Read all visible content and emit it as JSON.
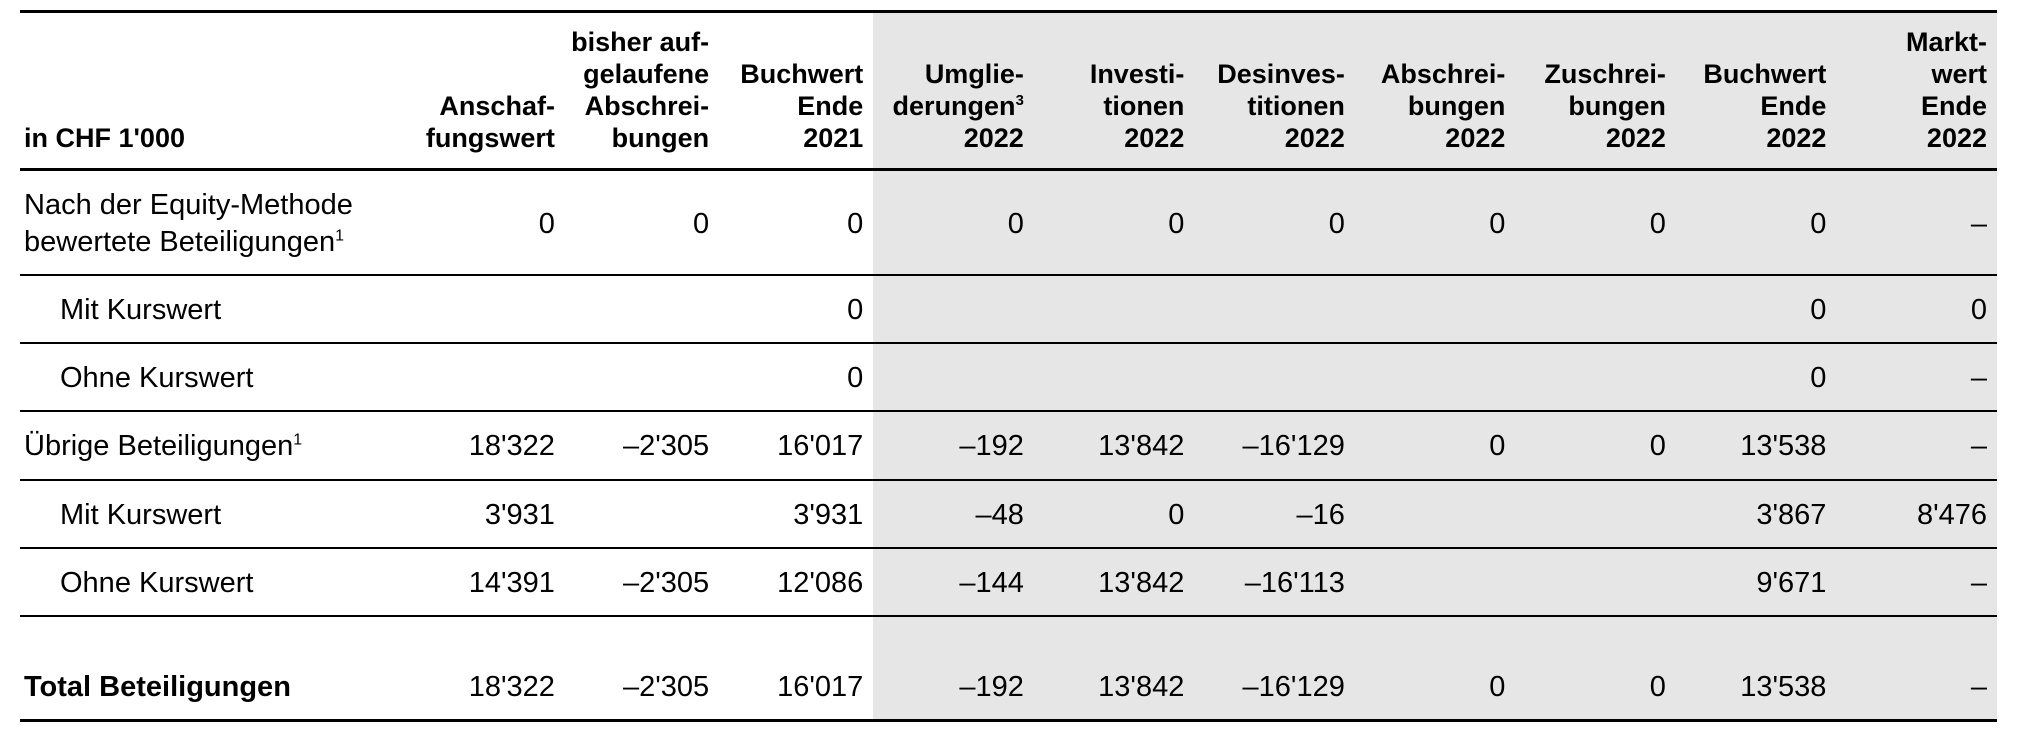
{
  "header": {
    "rowLabel": "in CHF 1'000",
    "cols": [
      "Anschaf-\nfungswert",
      "bisher auf-\ngelaufene\nAbschrei-\nbungen",
      "Buchwert\nEnde\n2021",
      "Umglie-\nderungen³\n2022",
      "Investi-\ntionen\n2022",
      "Desinves-\ntitionen\n2022",
      "Abschrei-\nbungen\n2022",
      "Zuschrei-\nbungen\n2022",
      "Buchwert\nEnde\n2022",
      "Markt-\nwert\nEnde\n2022"
    ]
  },
  "rows": [
    {
      "label": "Nach der Equity-Methode\nbewertete Beteiligungen¹",
      "cells": [
        "0",
        "0",
        "0",
        "0",
        "0",
        "0",
        "0",
        "0",
        "0",
        "–"
      ],
      "indent": false
    },
    {
      "label": "Mit Kurswert",
      "cells": [
        "",
        "",
        "0",
        "",
        "",
        "",
        "",
        "",
        "0",
        "0"
      ],
      "indent": true
    },
    {
      "label": "Ohne Kurswert",
      "cells": [
        "",
        "",
        "0",
        "",
        "",
        "",
        "",
        "",
        "0",
        "–"
      ],
      "indent": true
    },
    {
      "label": "Übrige Beteiligungen¹",
      "cells": [
        "18'322",
        "–2'305",
        "16'017",
        "–192",
        "13'842",
        "–16'129",
        "0",
        "0",
        "13'538",
        "–"
      ],
      "indent": false
    },
    {
      "label": "Mit Kurswert",
      "cells": [
        "3'931",
        "",
        "3'931",
        "–48",
        "0",
        "–16",
        "",
        "",
        "3'867",
        "8'476"
      ],
      "indent": true
    },
    {
      "label": "Ohne Kurswert",
      "cells": [
        "14'391",
        "–2'305",
        "12'086",
        "–144",
        "13'842",
        "–16'113",
        "",
        "",
        "9'671",
        "–"
      ],
      "indent": true
    }
  ],
  "total": {
    "label": "Total Beteiligungen",
    "cells": [
      "18'322",
      "–2'305",
      "16'017",
      "–192",
      "13'842",
      "–16'129",
      "0",
      "0",
      "13'538",
      "–"
    ]
  },
  "style": {
    "highlightStart": 3,
    "highlightEnd": 9,
    "highlightColor": "#e7e6e6",
    "background": "#ffffff",
    "text": "#000000",
    "headerFontSize": 27,
    "bodyFontSize": 29,
    "borderThin": 2,
    "borderThick": 3
  }
}
